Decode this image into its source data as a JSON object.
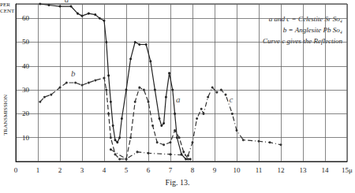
{
  "chart_data": {
    "type": "line",
    "title": "Fig. 13.",
    "y_label_top": "PER CENT",
    "y_label": "TRANSMISSION",
    "xlim": [
      0,
      15
    ],
    "xticks": [
      0,
      1,
      2,
      3,
      4,
      5,
      6,
      7,
      8,
      9,
      10,
      11,
      12,
      13,
      14,
      {
        "value": 15,
        "label": "15μ"
      }
    ],
    "ylim": [
      0,
      66
    ],
    "yticks": [
      10,
      20,
      30,
      40,
      50,
      60
    ],
    "grid": true,
    "legend_text": [
      "a and c = Celestite Sr So₄",
      "b = Anglesite Pb So₄",
      "Curve c gives the Reflection"
    ],
    "series": [
      {
        "name": "a",
        "color": "#222222",
        "line_style": "solid",
        "marker": "circle",
        "x": [
          1.1,
          1.5,
          2,
          2.5,
          2.8,
          3,
          3.3,
          3.6,
          3.8,
          4,
          4.1,
          4.2,
          4.3,
          4.4,
          4.5,
          4.6,
          4.7,
          4.8,
          5,
          5.2,
          5.4,
          5.6,
          5.9,
          6.1,
          6.3,
          6.5,
          6.6,
          6.7,
          6.8,
          6.95,
          7.1,
          7.2,
          7.3,
          7.5,
          7.7,
          7.9
        ],
        "values": [
          66,
          65.5,
          65,
          65,
          62,
          61,
          62,
          61.5,
          60,
          59,
          50,
          36,
          25,
          15,
          9,
          8,
          10,
          18,
          30,
          43,
          50,
          49,
          49,
          42,
          30,
          18,
          15,
          16,
          27,
          37,
          30,
          20,
          10,
          3,
          1,
          1
        ]
      },
      {
        "name": "b",
        "color": "#333333",
        "line_style": "dashed",
        "marker": "circle",
        "x": [
          1.1,
          1.3,
          1.6,
          2,
          2.3,
          2.7,
          3,
          3.3,
          3.6,
          4,
          4.1,
          4.2,
          4.3,
          4.5,
          4.7,
          5,
          5.2,
          5.4,
          5.6,
          5.8,
          6,
          6.2,
          6.4,
          6.7,
          7,
          7.2,
          7.4,
          7.6,
          7.8
        ],
        "values": [
          25,
          27,
          28,
          31,
          33,
          33,
          32,
          33,
          34,
          35,
          30,
          20,
          10,
          3,
          1,
          1,
          10,
          25,
          31,
          30,
          25,
          15,
          8,
          7,
          8,
          13,
          10,
          4,
          1
        ]
      },
      {
        "name": "c",
        "color": "#333333",
        "line_style": "dashdot",
        "marker": "circle",
        "x": [
          4.3,
          5,
          5.5,
          6,
          7,
          7.8,
          8,
          8.2,
          8.4,
          8.5,
          8.7,
          8.9,
          9.1,
          9.3,
          9.5,
          9.8,
          10,
          10.3,
          11,
          11.5,
          12
        ],
        "values": [
          5,
          1,
          4,
          3.5,
          3,
          2.5,
          8,
          18,
          22,
          20,
          27,
          31,
          29,
          30,
          28,
          20,
          13,
          9,
          8.5,
          8,
          7
        ]
      }
    ],
    "annotations": [
      {
        "text": "a",
        "x": 2.3,
        "y": 68
      },
      {
        "text": "b",
        "x": 2.6,
        "y": 37
      },
      {
        "text": "a",
        "x": 7.35,
        "y": 26
      },
      {
        "text": "c",
        "x": 9.75,
        "y": 26
      }
    ]
  }
}
